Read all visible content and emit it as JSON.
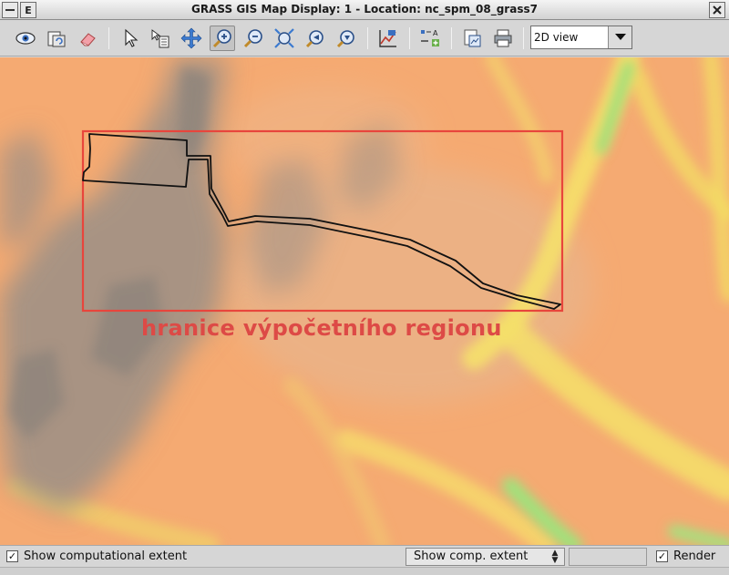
{
  "window": {
    "title": "GRASS GIS Map Display: 1  - Location: nc_spm_08_grass7",
    "menu_button_label": "E"
  },
  "toolbar": {
    "tools": [
      {
        "name": "display-map-icon",
        "active": false
      },
      {
        "name": "render-map-icon",
        "active": false
      },
      {
        "name": "erase-icon",
        "active": false
      },
      {
        "name": "pointer-icon",
        "active": false
      },
      {
        "name": "query-icon",
        "active": false
      },
      {
        "name": "pan-icon",
        "active": false
      },
      {
        "name": "zoom-in-icon",
        "active": true
      },
      {
        "name": "zoom-out-icon",
        "active": false
      },
      {
        "name": "zoom-extent-icon",
        "active": false
      },
      {
        "name": "zoom-back-icon",
        "active": false
      },
      {
        "name": "zoom-menu-icon",
        "active": false
      },
      {
        "name": "analyze-icon",
        "active": false
      },
      {
        "name": "overlay-icon",
        "active": false
      },
      {
        "name": "save-image-icon",
        "active": false
      },
      {
        "name": "print-icon",
        "active": false
      }
    ],
    "view_mode": "2D view"
  },
  "map": {
    "region_label": "hranice výpočetního regionu",
    "region_color": "#e8453c",
    "vector_color": "#111111"
  },
  "statusbar": {
    "show_extent_checked": true,
    "show_extent_label": "Show computational extent",
    "combo_value": "Show comp. extent",
    "render_checked": true,
    "render_label": "Render"
  }
}
